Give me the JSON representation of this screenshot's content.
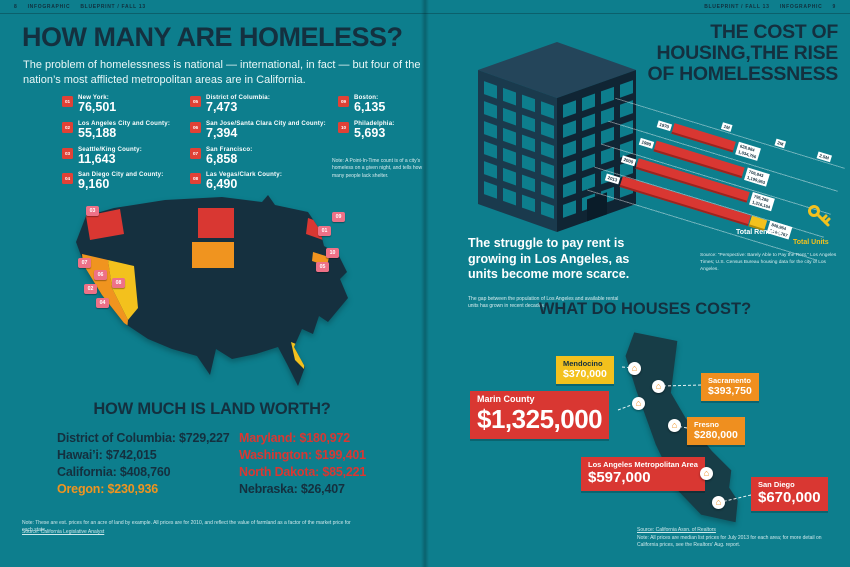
{
  "colors": {
    "bg": "#0d7e8d",
    "navy": "#14303f",
    "red": "#d93732",
    "orange": "#f0941f",
    "yellow": "#f3c11d",
    "pink": "#ee7187"
  },
  "masthead": {
    "left": {
      "folio": "8",
      "section": "INFOGRAPHIC",
      "title": "BLUEPRINT / FALL 13"
    },
    "right": {
      "title": "BLUEPRINT / FALL 13",
      "section": "INFOGRAPHIC",
      "folio": "9"
    }
  },
  "homeless": {
    "title": "HOW MANY ARE HOMELESS?",
    "subtitle": "The problem of homelessness is national — international, in fact — but four of the nation’s most afflicted metropolitan areas are in California.",
    "note": "Note: A Point-In-Time count is of a city’s homeless on a given night, and tells how many people lack shelter.",
    "stats": [
      {
        "rank": "01",
        "name": "New York:",
        "value": "76,501"
      },
      {
        "rank": "02",
        "name": "Los Angeles City and County:",
        "value": "55,188"
      },
      {
        "rank": "03",
        "name": "Seattle/King County:",
        "value": "11,643"
      },
      {
        "rank": "04",
        "name": "San Diego City and County:",
        "value": "9,160"
      },
      {
        "rank": "05",
        "name": "District of Columbia:",
        "value": "7,473"
      },
      {
        "rank": "06",
        "name": "San Jose/Santa Clara City and County:",
        "value": "7,394"
      },
      {
        "rank": "07",
        "name": "San Francisco:",
        "value": "6,858"
      },
      {
        "rank": "08",
        "name": "Las Vegas/Clark County:",
        "value": "6,490"
      },
      {
        "rank": "09",
        "name": "Boston:",
        "value": "6,135"
      },
      {
        "rank": "10",
        "name": "Philadelphia:",
        "value": "5,693"
      }
    ]
  },
  "map_pins": [
    "01",
    "02",
    "03",
    "04",
    "05",
    "06",
    "07",
    "08",
    "09",
    "10"
  ],
  "land": {
    "title": "HOW MUCH IS LAND WORTH?",
    "col1": [
      {
        "text": "District of Columbia: $729,227",
        "tone": "navy"
      },
      {
        "text": "Hawai’i: $742,015",
        "tone": "navy"
      },
      {
        "text": "California: $408,760",
        "tone": "navy"
      },
      {
        "text": "Oregon: $230,936",
        "tone": "orange"
      }
    ],
    "col2": [
      {
        "text": "Maryland: $180,972",
        "tone": "red"
      },
      {
        "text": "Washington: $199,401",
        "tone": "red"
      },
      {
        "text": "North Dakota: $85,221",
        "tone": "red"
      },
      {
        "text": "Nebraska: $26,407",
        "tone": "navy"
      }
    ],
    "note": "Note: These are est. prices for an acre of land by example. All prices are for 2010, and reflect the value of farmland as a factor of the market price for each state.",
    "source": "Source: California Legislative Analyst"
  },
  "housing_cost": {
    "title_lines": [
      "THE COST OF",
      "HOUSING,THE RISE",
      "OF HOMELESSNESS"
    ],
    "struggle": "The struggle to pay rent is growing in Los Angeles, as units become more scarce.",
    "struggle_sub": "The gap between the population of Los Angeles and available rental units has grown in recent decades.",
    "source": "Source: “Perspective: Barely Able to Pay the Rent,” Los Angeles Times; U.S. Census Bureau housing data for the city of Los Angeles.",
    "legend": {
      "renters": "Total Renters",
      "units": "Total Units"
    },
    "ticks": [
      "1M",
      "2M",
      "2.5M"
    ],
    "rows": [
      {
        "year": "1970",
        "renters": "628,984",
        "units": "1,034,766"
      },
      {
        "year": "1990",
        "renters": "706,843",
        "units": "1,199,963"
      },
      {
        "year": "2000",
        "renters": "795,286",
        "units": "1,316,164"
      },
      {
        "year": "2013",
        "renters": "848,964",
        "units": "1,364,767"
      }
    ]
  },
  "houses": {
    "title": "WHAT DO HOUSES COST?",
    "items": [
      {
        "name": "Mendocino",
        "price": "$370,000",
        "tone": "yellow",
        "size": "sm"
      },
      {
        "name": "Sacramento",
        "price": "$393,750",
        "tone": "orange",
        "size": "sm"
      },
      {
        "name": "Marin County",
        "price": "$1,325,000",
        "tone": "red",
        "size": "xl"
      },
      {
        "name": "Fresno",
        "price": "$280,000",
        "tone": "orange",
        "size": "sm"
      },
      {
        "name": "Los Angeles Metropolitan Area",
        "price": "$597,000",
        "tone": "red",
        "size": "lg"
      },
      {
        "name": "San Diego",
        "price": "$670,000",
        "tone": "red",
        "size": "lg"
      }
    ],
    "source": "Source: California Assn. of Realtors",
    "note": "Note: All prices are median list prices for July 2013 for each area; for more detail on California prices, see the Realtors’ Aug. report."
  },
  "chart_data": [
    {
      "type": "bar",
      "title": "How Many Are Homeless? (Point-in-Time counts)",
      "categories": [
        "New York",
        "Los Angeles City and County",
        "Seattle/King County",
        "San Diego City and County",
        "District of Columbia",
        "San Jose/Santa Clara City and County",
        "San Francisco",
        "Las Vegas/Clark County",
        "Boston",
        "Philadelphia"
      ],
      "values": [
        76501,
        55188,
        11643,
        9160,
        7473,
        7394,
        6858,
        6490,
        6135,
        5693
      ]
    },
    {
      "type": "bar",
      "title": "How Much Is Land Worth?",
      "categories": [
        "District of Columbia",
        "Hawai'i",
        "California",
        "Oregon",
        "Maryland",
        "Washington",
        "North Dakota",
        "Nebraska"
      ],
      "values": [
        729227,
        742015,
        408760,
        230936,
        180972,
        199401,
        85221,
        26407
      ]
    },
    {
      "type": "bar",
      "title": "Total Renters vs Total Units, Los Angeles",
      "categories": [
        "1970",
        "1990",
        "2000",
        "2013"
      ],
      "series": [
        {
          "name": "Total Renters",
          "values": [
            628984,
            706843,
            795286,
            848964
          ]
        },
        {
          "name": "Total Units",
          "values": [
            1034766,
            1199963,
            1316164,
            1364767
          ]
        }
      ],
      "xlabel": "",
      "ylabel": "",
      "ylim": [
        0,
        2500000
      ],
      "tick_labels": [
        "1M",
        "2M",
        "2.5M"
      ],
      "legend_position": "bottom-right"
    },
    {
      "type": "bar",
      "title": "What Do Houses Cost? (median price)",
      "categories": [
        "Mendocino",
        "Sacramento",
        "Marin County",
        "Fresno",
        "Los Angeles Metropolitan Area",
        "San Diego"
      ],
      "values": [
        370000,
        393750,
        1325000,
        280000,
        597000,
        670000
      ]
    }
  ]
}
